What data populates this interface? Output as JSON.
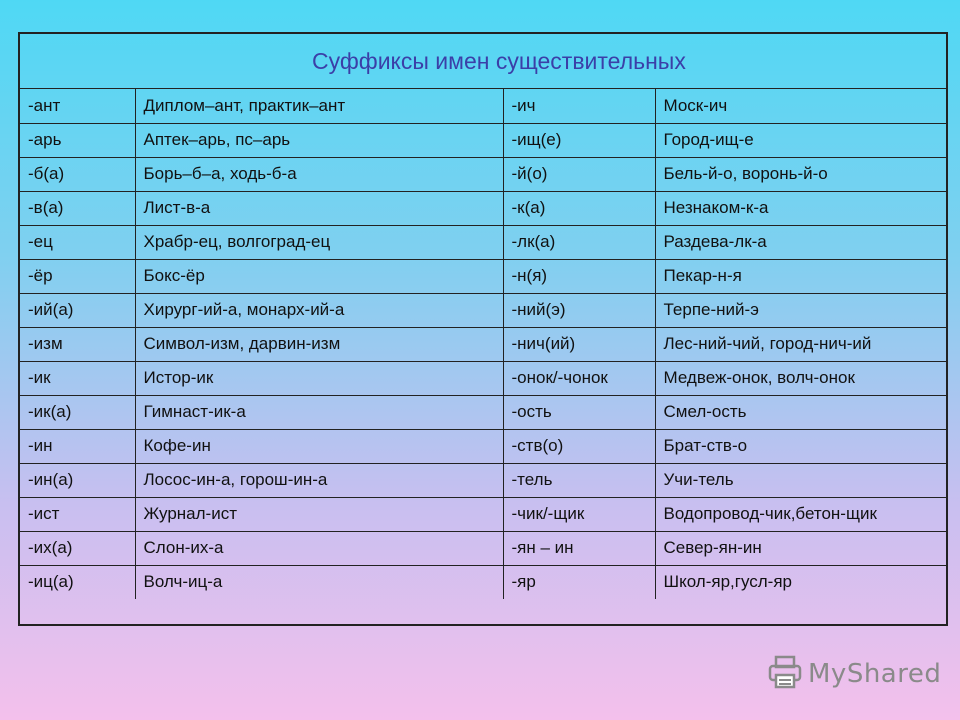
{
  "title": "Суффиксы имен существительных",
  "rows": [
    [
      "-ант",
      "Диплом–ант, практик–ант",
      "-ич",
      "Моск-ич"
    ],
    [
      "-арь",
      "Аптек–арь, пс–арь",
      "-ищ(е)",
      "Город-ищ-е"
    ],
    [
      "-б(а)",
      "Борь–б–а, ходь-б-а",
      "-й(о)",
      "Бель-й-о, воронь-й-о"
    ],
    [
      "-в(а)",
      "Лист-в-а",
      "-к(а)",
      "Незнаком-к-а"
    ],
    [
      "-ец",
      "Храбр-ец, волгоград-ец",
      "-лк(а)",
      "Раздева-лк-а"
    ],
    [
      "-ёр",
      "Бокс-ёр",
      "-н(я)",
      "Пекар-н-я"
    ],
    [
      "-ий(а)",
      "Хирург-ий-а, монарх-ий-а",
      "-ний(э)",
      "Терпе-ний-э"
    ],
    [
      "-изм",
      "Символ-изм, дарвин-изм",
      "-нич(ий)",
      "Лес-ний-чий, город-нич-ий"
    ],
    [
      "-ик",
      "Истор-ик",
      "-онок/-чонок",
      "Медвеж-онок, волч-онок"
    ],
    [
      "-ик(а)",
      "Гимнаст-ик-а",
      "-ость",
      "Смел-ость"
    ],
    [
      "-ин",
      "Кофе-ин",
      "-ств(о)",
      "Брат-ств-о"
    ],
    [
      "-ин(а)",
      "Лосос-ин-а, горош-ин-а",
      "-тель",
      "Учи-тель"
    ],
    [
      "-ист",
      "Журнал-ист",
      "-чик/-щик",
      "Водопровод-чик,бетон-щик"
    ],
    [
      "-их(а)",
      "Слон-их-а",
      "-ян – ин",
      "Север-ян-ин"
    ],
    [
      "-иц(а)",
      "Волч-иц-а",
      "-яр",
      "Школ-яр,гусл-яр"
    ]
  ],
  "logo": {
    "text": "MyShared",
    "icon": "printer-icon",
    "color": "#8a8a8a"
  }
}
